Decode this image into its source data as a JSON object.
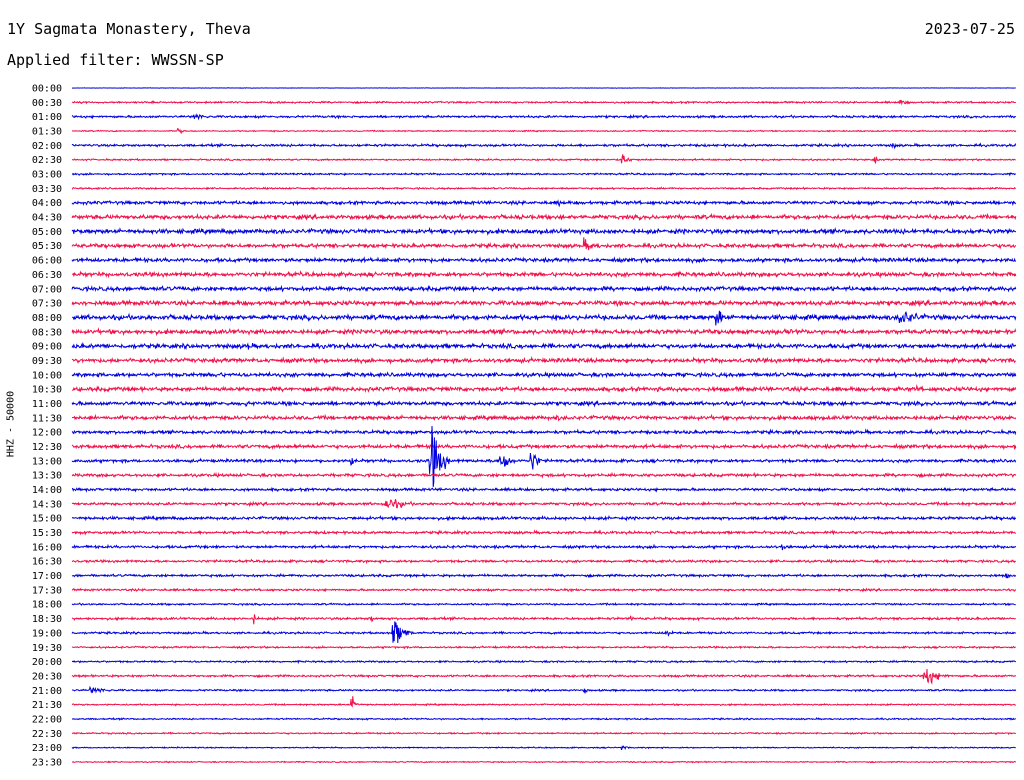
{
  "header": {
    "station": "1Y Sagmata Monastery, Theva",
    "date": "2023-07-25",
    "filter": "Applied filter: WWSSN-SP"
  },
  "chart_data": {
    "type": "line",
    "title": "1Y Sagmata Monastery, Theva",
    "ylabel": "HHZ - 50000",
    "colors": [
      "#0000dd",
      "#f0104a"
    ],
    "row_labels": [
      "00:00",
      "00:30",
      "01:00",
      "01:30",
      "02:00",
      "02:30",
      "03:00",
      "03:30",
      "04:00",
      "04:30",
      "05:00",
      "05:30",
      "06:00",
      "06:30",
      "07:00",
      "07:30",
      "08:00",
      "08:30",
      "09:00",
      "09:30",
      "10:00",
      "10:30",
      "11:00",
      "11:30",
      "12:00",
      "12:30",
      "13:00",
      "13:30",
      "14:00",
      "14:30",
      "15:00",
      "15:30",
      "16:00",
      "16:30",
      "17:00",
      "17:30",
      "18:00",
      "18:30",
      "19:00",
      "19:30",
      "20:00",
      "20:30",
      "21:00",
      "21:30",
      "22:00",
      "22:30",
      "23:00",
      "23:30"
    ],
    "noise_levels": [
      0.3,
      1.2,
      1.5,
      0.8,
      1.6,
      1.1,
      1.2,
      1.1,
      2.2,
      2.8,
      3.0,
      2.6,
      2.6,
      2.8,
      2.8,
      3.0,
      3.2,
      3.0,
      3.0,
      2.8,
      2.6,
      2.8,
      2.5,
      2.6,
      2.2,
      2.4,
      2.0,
      2.0,
      1.8,
      1.8,
      2.0,
      1.8,
      1.8,
      1.6,
      1.6,
      1.4,
      1.2,
      1.6,
      1.4,
      1.2,
      1.2,
      1.4,
      1.2,
      1.0,
      1.0,
      1.0,
      0.8,
      0.8
    ],
    "events": [
      {
        "row": 1,
        "minute": 26.3,
        "amplitude": 4,
        "duration_min": 0.9
      },
      {
        "row": 2,
        "minute": 3.9,
        "amplitude": 5,
        "duration_min": 1.0
      },
      {
        "row": 3,
        "minute": 3.4,
        "amplitude": 6,
        "duration_min": 0.2
      },
      {
        "row": 4,
        "minute": 26.1,
        "amplitude": 6,
        "duration_min": 0.2
      },
      {
        "row": 5,
        "minute": 17.5,
        "amplitude": 10,
        "duration_min": 0.4
      },
      {
        "row": 5,
        "minute": 25.5,
        "amplitude": 6,
        "duration_min": 0.2
      },
      {
        "row": 8,
        "minute": 15.5,
        "amplitude": 6,
        "duration_min": 0.2
      },
      {
        "row": 11,
        "minute": 16.3,
        "amplitude": 9,
        "duration_min": 0.9
      },
      {
        "row": 16,
        "minute": 20.5,
        "amplitude": 14,
        "duration_min": 0.5
      },
      {
        "row": 16,
        "minute": 26.3,
        "amplitude": 13,
        "duration_min": 1.4
      },
      {
        "row": 17,
        "minute": 9.2,
        "amplitude": 7,
        "duration_min": 0.2
      },
      {
        "row": 17,
        "minute": 18.5,
        "amplitude": 8,
        "duration_min": 0.2
      },
      {
        "row": 17,
        "minute": 22.8,
        "amplitude": 8,
        "duration_min": 0.2
      },
      {
        "row": 18,
        "minute": 5.6,
        "amplitude": 7,
        "duration_min": 0.4
      },
      {
        "row": 20,
        "minute": 4.6,
        "amplitude": 6,
        "duration_min": 0.5
      },
      {
        "row": 21,
        "minute": 26.8,
        "amplitude": 5,
        "duration_min": 0.8
      },
      {
        "row": 22,
        "minute": 5.5,
        "amplitude": 7,
        "duration_min": 0.2
      },
      {
        "row": 23,
        "minute": 15.4,
        "amplitude": 5,
        "duration_min": 0.6
      },
      {
        "row": 25,
        "minute": 30.0,
        "amplitude": 6,
        "duration_min": 0.2
      },
      {
        "row": 26,
        "minute": 8.9,
        "amplitude": 9,
        "duration_min": 0.2
      },
      {
        "row": 26,
        "minute": 11.4,
        "amplitude": 55,
        "duration_min": 0.6
      },
      {
        "row": 26,
        "minute": 13.6,
        "amplitude": 26,
        "duration_min": 0.5
      },
      {
        "row": 26,
        "minute": 14.6,
        "amplitude": 20,
        "duration_min": 0.4
      },
      {
        "row": 29,
        "minute": 10.0,
        "amplitude": 11,
        "duration_min": 1.1
      },
      {
        "row": 32,
        "minute": 22.6,
        "amplitude": 6,
        "duration_min": 0.3
      },
      {
        "row": 34,
        "minute": 29.7,
        "amplitude": 5,
        "duration_min": 0.2
      },
      {
        "row": 37,
        "minute": 5.8,
        "amplitude": 7,
        "duration_min": 0.2
      },
      {
        "row": 37,
        "minute": 9.5,
        "amplitude": 7,
        "duration_min": 0.2
      },
      {
        "row": 37,
        "minute": 17.8,
        "amplitude": 6,
        "duration_min": 0.2
      },
      {
        "row": 38,
        "minute": 10.2,
        "amplitude": 26,
        "duration_min": 0.6
      },
      {
        "row": 38,
        "minute": 18.9,
        "amplitude": 8,
        "duration_min": 0.3
      },
      {
        "row": 41,
        "minute": 27.1,
        "amplitude": 16,
        "duration_min": 0.8
      },
      {
        "row": 42,
        "minute": 0.6,
        "amplitude": 5,
        "duration_min": 1.3
      },
      {
        "row": 42,
        "minute": 16.3,
        "amplitude": 6,
        "duration_min": 0.2
      },
      {
        "row": 43,
        "minute": 8.9,
        "amplitude": 12,
        "duration_min": 0.3
      },
      {
        "row": 46,
        "minute": 17.5,
        "amplitude": 4,
        "duration_min": 0.3
      }
    ]
  }
}
